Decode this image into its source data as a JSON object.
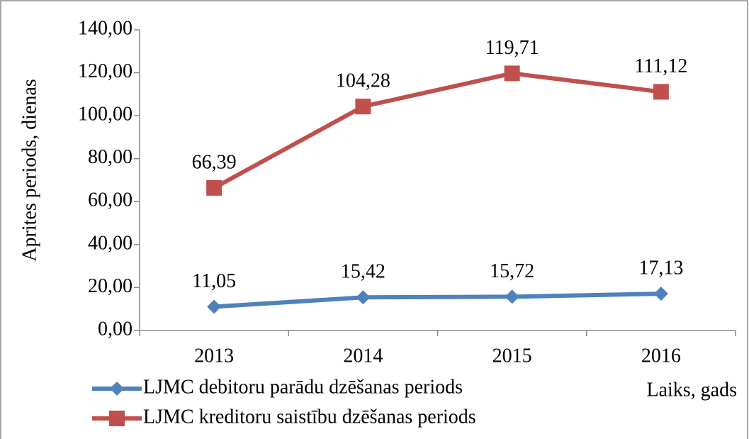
{
  "chart_data": {
    "type": "line",
    "categories": [
      "2013",
      "2014",
      "2015",
      "2016"
    ],
    "series": [
      {
        "name": "LJMC debitoru parādu dzēšanas periods",
        "color": "#4f81bd",
        "marker": "diamond",
        "values": [
          11.05,
          15.42,
          15.72,
          17.13
        ],
        "value_labels": [
          "11,05",
          "15,42",
          "15,72",
          "17,13"
        ]
      },
      {
        "name": "LJMC kreditoru saistību dzēšanas periods",
        "color": "#c0504d",
        "marker": "square",
        "values": [
          66.39,
          104.28,
          119.71,
          111.12
        ],
        "value_labels": [
          "66,39",
          "104,28",
          "119,71",
          "111,12"
        ]
      }
    ],
    "ylim": [
      0,
      140
    ],
    "yticks": [
      {
        "value": 0,
        "label": "0,00"
      },
      {
        "value": 20,
        "label": "20,00"
      },
      {
        "value": 40,
        "label": "40,00"
      },
      {
        "value": 60,
        "label": "60,00"
      },
      {
        "value": 80,
        "label": "80,00"
      },
      {
        "value": 100,
        "label": "100,00"
      },
      {
        "value": 120,
        "label": "120,00"
      },
      {
        "value": 140,
        "label": "140,00"
      }
    ],
    "y_label": "Aprites periods, dienas",
    "x_label": "Laiks, gads",
    "legend": "bottom-left"
  }
}
